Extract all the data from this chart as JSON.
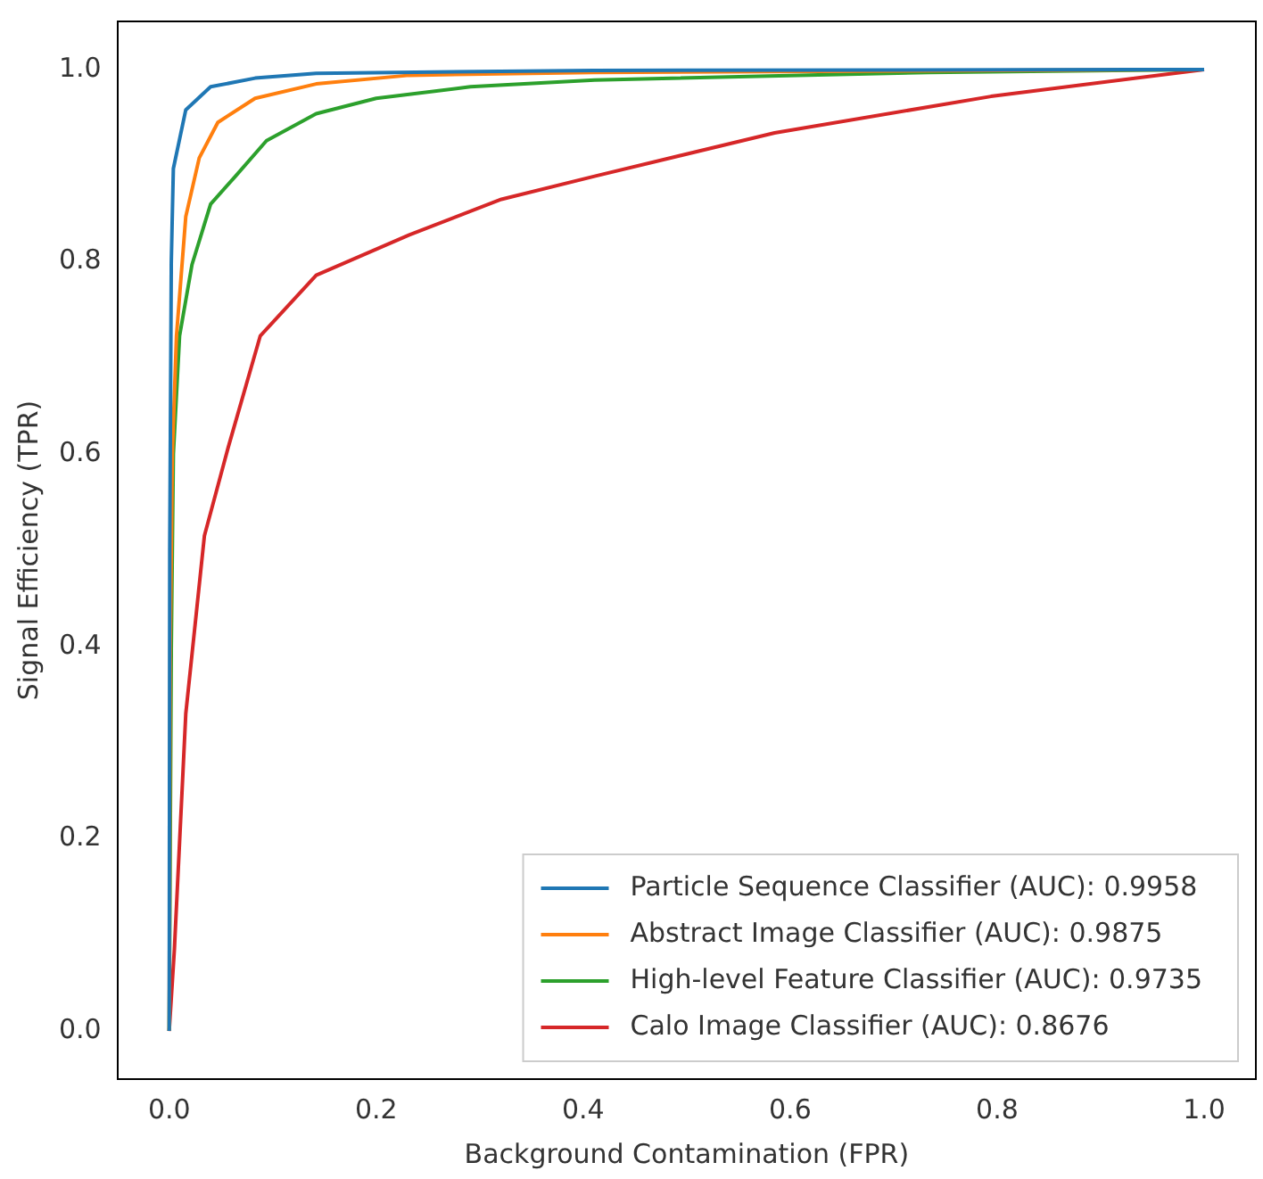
{
  "chart_data": {
    "type": "line",
    "xlabel": "Background Contamination (FPR)",
    "ylabel": "Signal Efficiency (TPR)",
    "xlim": [
      -0.05,
      1.05
    ],
    "ylim": [
      -0.05,
      1.05
    ],
    "xticks": [
      {
        "value": 0,
        "label": "0.0"
      },
      {
        "value": 0.2,
        "label": "0.2"
      },
      {
        "value": 0.4,
        "label": "0.4"
      },
      {
        "value": 0.6,
        "label": "0.6"
      },
      {
        "value": 0.8,
        "label": "0.8"
      },
      {
        "value": 1,
        "label": "1.0"
      }
    ],
    "yticks": [
      {
        "value": 0,
        "label": "0.0"
      },
      {
        "value": 0.2,
        "label": "0.2"
      },
      {
        "value": 0.4,
        "label": "0.4"
      },
      {
        "value": 0.6,
        "label": "0.6"
      },
      {
        "value": 0.8,
        "label": "0.8"
      },
      {
        "value": 1,
        "label": "1.0"
      }
    ],
    "grid": false,
    "legend": "bottom right",
    "marker": "none",
    "line_style": "solid",
    "series": [
      {
        "name": "Particle Sequence Classifier (AUC): 0.9958",
        "color": "#1f77b4",
        "x": [
          0,
          0.0005,
          0.002,
          0.004,
          0.016,
          0.04,
          0.083,
          0.142,
          0.41,
          1
        ],
        "values": [
          0,
          0.5,
          0.8,
          0.897,
          0.958,
          0.982,
          0.991,
          0.996,
          0.999,
          1
        ]
      },
      {
        "name": "Abstract Image Classifier (AUC): 0.9875",
        "color": "#ff7f0e",
        "x": [
          0,
          0.001,
          0.003,
          0.007,
          0.016,
          0.029,
          0.047,
          0.083,
          0.142,
          0.232,
          0.41,
          1
        ],
        "values": [
          0,
          0.4,
          0.6,
          0.723,
          0.847,
          0.908,
          0.945,
          0.97,
          0.985,
          0.994,
          0.997,
          1
        ]
      },
      {
        "name": "High-level Feature Classifier (AUC): 0.9735",
        "color": "#2ca02c",
        "x": [
          0,
          0.002,
          0.004,
          0.01,
          0.022,
          0.04,
          0.064,
          0.094,
          0.142,
          0.2,
          0.291,
          0.411,
          0.734,
          1
        ],
        "values": [
          0,
          0.4,
          0.6,
          0.723,
          0.797,
          0.86,
          0.889,
          0.926,
          0.954,
          0.97,
          0.982,
          0.989,
          0.997,
          1
        ]
      },
      {
        "name": "Calo Image Classifier (AUC): 0.8676",
        "color": "#d62728",
        "x": [
          0,
          0.005,
          0.016,
          0.034,
          0.057,
          0.088,
          0.142,
          0.232,
          0.321,
          0.411,
          0.585,
          0.794,
          1
        ],
        "values": [
          0,
          0.085,
          0.33,
          0.515,
          0.607,
          0.723,
          0.786,
          0.828,
          0.865,
          0.889,
          0.934,
          0.972,
          1
        ]
      }
    ]
  }
}
